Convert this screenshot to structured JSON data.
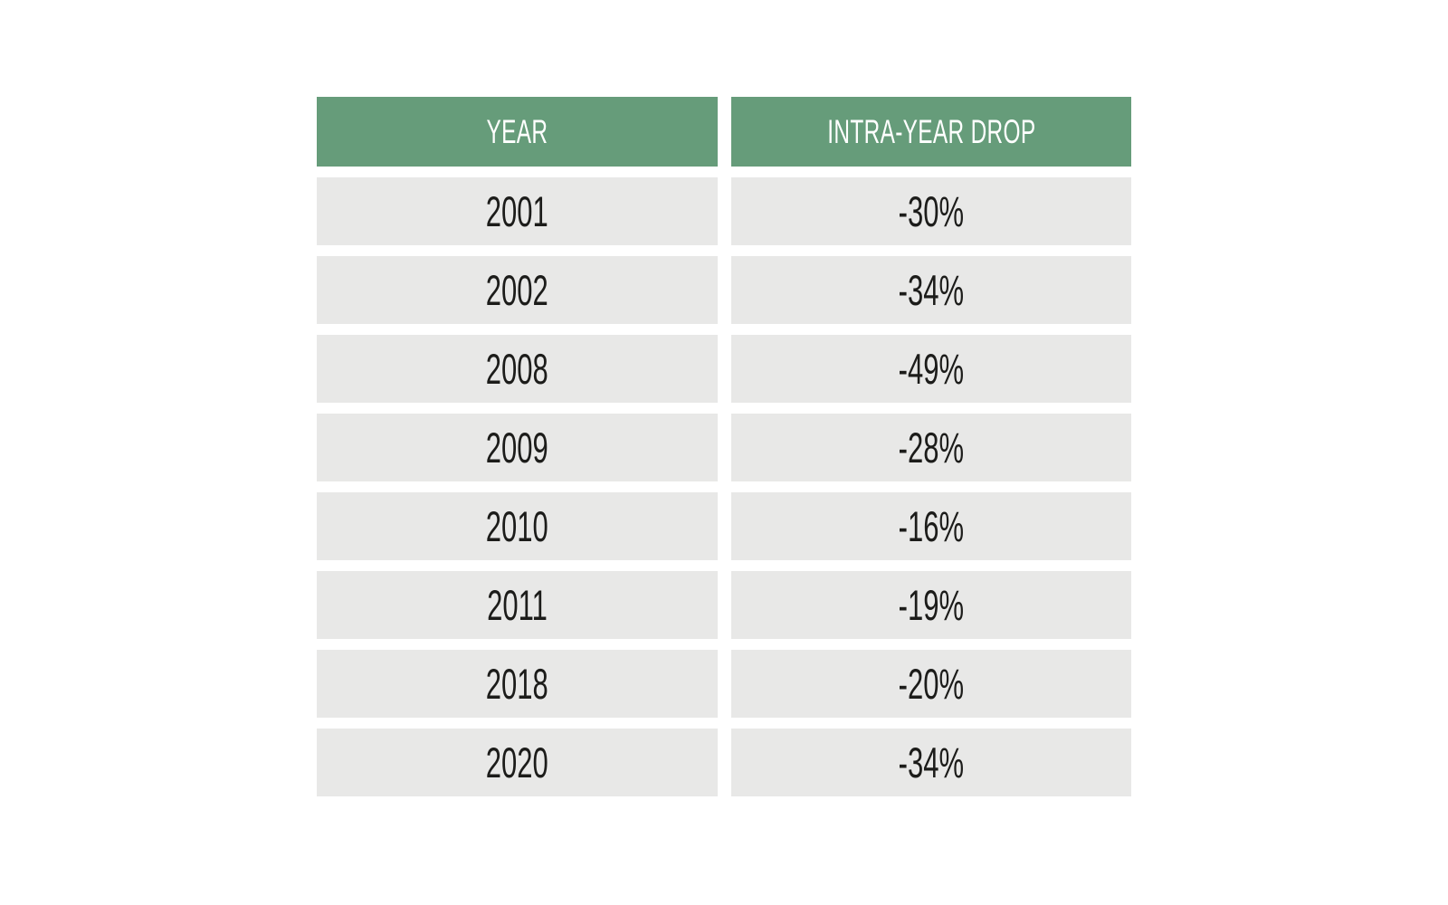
{
  "colors": {
    "header_bg": "#669c7a",
    "header_text": "#ffffff",
    "row_bg": "#e8e8e7",
    "cell_text": "#1c1c1a",
    "page_bg": "#ffffff"
  },
  "table": {
    "headers": [
      "YEAR",
      "INTRA-YEAR DROP"
    ],
    "rows": [
      [
        "2001",
        "-30%"
      ],
      [
        "2002",
        "-34%"
      ],
      [
        "2008",
        "-49%"
      ],
      [
        "2009",
        "-28%"
      ],
      [
        "2010",
        "-16%"
      ],
      [
        "2011",
        "-19%"
      ],
      [
        "2018",
        "-20%"
      ],
      [
        "2020",
        "-34%"
      ]
    ]
  },
  "chart_data": {
    "type": "table",
    "title": "",
    "columns": [
      "Year",
      "Intra-year drop"
    ],
    "categories": [
      "2001",
      "2002",
      "2008",
      "2009",
      "2010",
      "2011",
      "2018",
      "2020"
    ],
    "values": [
      -30,
      -34,
      -49,
      -28,
      -16,
      -19,
      -20,
      -34
    ],
    "unit": "%",
    "legend_position": "none",
    "grid": false
  }
}
